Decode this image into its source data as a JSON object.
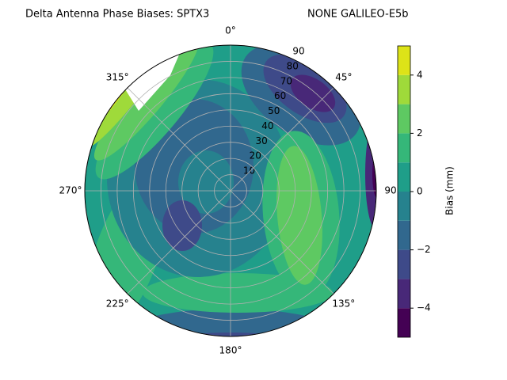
{
  "chart_data": {
    "type": "polar-contour",
    "title": "Delta Antenna Phase Biases: SPTX3",
    "subtitle": "NONE GALILEO-E5b",
    "ylim": [
      0,
      90
    ],
    "yticks": [
      10,
      20,
      30,
      40,
      50,
      60,
      70,
      80,
      90
    ],
    "theta_ticks": [
      {
        "value": 0,
        "label": "0°"
      },
      {
        "value": 45,
        "label": "45°"
      },
      {
        "value": 90,
        "label": "90"
      },
      {
        "value": 135,
        "label": "135°"
      },
      {
        "value": 180,
        "label": "180°"
      },
      {
        "value": 225,
        "label": "225°"
      },
      {
        "value": 270,
        "label": "270°"
      },
      {
        "value": 315,
        "label": "315°"
      }
    ],
    "theta_direction": "clockwise",
    "theta_zero": "N",
    "grid": true,
    "colorbar_label": "Bias (mm)",
    "clim": [
      -5,
      5
    ],
    "levels": [
      -5,
      -4,
      -3,
      -2,
      -1,
      0,
      1,
      2,
      3,
      4,
      5
    ],
    "colors": [
      "#440154",
      "#482878",
      "#3e4a89",
      "#31688e",
      "#26828e",
      "#1f9e89",
      "#35b779",
      "#5ec962",
      "#9fda3a",
      "#dde318"
    ],
    "cticks": [
      {
        "value": -4,
        "label": "−4"
      },
      {
        "value": -2,
        "label": "−2"
      },
      0,
      2,
      4
    ]
  }
}
